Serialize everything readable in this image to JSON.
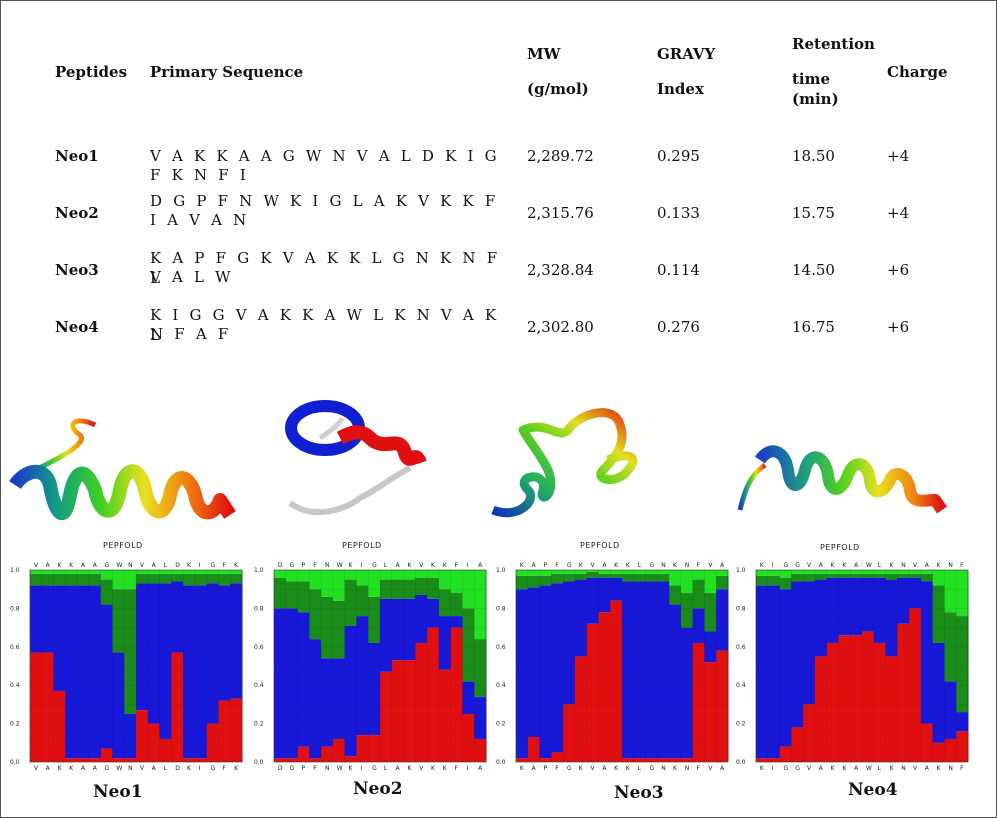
{
  "table": {
    "headers": {
      "peptides": "Peptides",
      "primary_sequence": "Primary Sequence",
      "mw_line1": "MW",
      "mw_line2": "(g/mol)",
      "gravy_line1": "GRAVY",
      "gravy_line2": "Index",
      "retention_line1": "Retention",
      "retention_line2": "time",
      "retention_line3": "(min)",
      "charge": "Charge"
    },
    "rows": [
      {
        "name": "Neo1",
        "seq_line1": "V A K K A A G W N V A L D K I G F K N F I",
        "seq_line2": "",
        "mw": "2,289.72",
        "gravy": "0.295",
        "retention": "18.50",
        "charge": "+4"
      },
      {
        "name": "Neo2",
        "seq_line1": "D G P F N W K I G L A K V K K F I A V A N",
        "seq_line2": "",
        "mw": "2,315.76",
        "gravy": "0.133",
        "retention": "15.75",
        "charge": "+4"
      },
      {
        "name": "Neo3",
        "seq_line1": "K A P F G K V A K K L G N K N F V A L W",
        "seq_line2": "L",
        "mw": "2,328.84",
        "gravy": "0.114",
        "retention": "14.50",
        "charge": "+6"
      },
      {
        "name": "Neo4",
        "seq_line1": "K I G G V A K K A W L K N V A K N F A F",
        "seq_line2": "L",
        "mw": "2,302.80",
        "gravy": "0.276",
        "retention": "16.75",
        "charge": "+6"
      }
    ]
  },
  "structures": {
    "pepfold_label": "PEPFOLD"
  },
  "chart_data": [
    {
      "type": "area",
      "title": "Neo1",
      "ylim": [
        0,
        1.0
      ],
      "yticks": [
        "1.0",
        "0.8",
        "0.6",
        "0.4",
        "0.2",
        "0.0"
      ],
      "residues": [
        "V",
        "A",
        "K",
        "K",
        "A",
        "A",
        "G",
        "W",
        "N",
        "V",
        "A",
        "L",
        "D",
        "K",
        "I",
        "G",
        "F",
        "K"
      ],
      "series": [
        {
          "color": "#e01010",
          "values": [
            0.57,
            0.57,
            0.37,
            0.02,
            0.02,
            0.02,
            0.07,
            0.02,
            0.02,
            0.27,
            0.2,
            0.12,
            0.57,
            0.02,
            0.02,
            0.2,
            0.32,
            0.33
          ]
        },
        {
          "color": "#1818d8",
          "values": [
            0.35,
            0.35,
            0.55,
            0.9,
            0.9,
            0.9,
            0.75,
            0.55,
            0.23,
            0.66,
            0.73,
            0.81,
            0.37,
            0.9,
            0.9,
            0.73,
            0.6,
            0.6
          ]
        },
        {
          "color": "#1a8c1a",
          "values": [
            0.06,
            0.06,
            0.06,
            0.06,
            0.06,
            0.06,
            0.13,
            0.33,
            0.65,
            0.05,
            0.05,
            0.05,
            0.04,
            0.06,
            0.06,
            0.05,
            0.06,
            0.05
          ]
        },
        {
          "color": "#22e022",
          "values": [
            0.02,
            0.02,
            0.02,
            0.02,
            0.02,
            0.02,
            0.05,
            0.1,
            0.1,
            0.02,
            0.02,
            0.02,
            0.02,
            0.02,
            0.02,
            0.02,
            0.02,
            0.02
          ]
        }
      ]
    },
    {
      "type": "area",
      "title": "Neo2",
      "ylim": [
        0,
        1.0
      ],
      "yticks": [
        "1.0",
        "0.8",
        "0.6",
        "0.4",
        "0.2",
        "0.0"
      ],
      "residues": [
        "D",
        "G",
        "P",
        "F",
        "N",
        "W",
        "K",
        "I",
        "G",
        "L",
        "A",
        "K",
        "V",
        "K",
        "K",
        "F",
        "I",
        "A"
      ],
      "series": [
        {
          "color": "#e01010",
          "values": [
            0.02,
            0.02,
            0.08,
            0.02,
            0.08,
            0.12,
            0.03,
            0.14,
            0.14,
            0.47,
            0.53,
            0.53,
            0.62,
            0.7,
            0.48,
            0.7,
            0.25,
            0.12
          ]
        },
        {
          "color": "#1818d8",
          "values": [
            0.78,
            0.78,
            0.7,
            0.62,
            0.46,
            0.42,
            0.68,
            0.62,
            0.48,
            0.38,
            0.32,
            0.32,
            0.25,
            0.15,
            0.28,
            0.06,
            0.17,
            0.22
          ]
        },
        {
          "color": "#1a8c1a",
          "values": [
            0.16,
            0.14,
            0.16,
            0.26,
            0.32,
            0.3,
            0.24,
            0.16,
            0.24,
            0.1,
            0.1,
            0.1,
            0.09,
            0.11,
            0.14,
            0.12,
            0.38,
            0.3
          ]
        },
        {
          "color": "#22e022",
          "values": [
            0.04,
            0.06,
            0.06,
            0.1,
            0.14,
            0.16,
            0.05,
            0.08,
            0.14,
            0.05,
            0.05,
            0.05,
            0.04,
            0.04,
            0.1,
            0.12,
            0.2,
            0.36
          ]
        }
      ]
    },
    {
      "type": "area",
      "title": "Neo3",
      "ylim": [
        0,
        1.0
      ],
      "yticks": [
        "1.0",
        "0.8",
        "0.6",
        "0.4",
        "0.2",
        "0.0"
      ],
      "residues": [
        "K",
        "A",
        "P",
        "F",
        "G",
        "K",
        "V",
        "A",
        "K",
        "K",
        "L",
        "G",
        "N",
        "K",
        "N",
        "F",
        "V",
        "A"
      ],
      "series": [
        {
          "color": "#e01010",
          "values": [
            0.02,
            0.13,
            0.02,
            0.05,
            0.3,
            0.55,
            0.72,
            0.78,
            0.84,
            0.02,
            0.02,
            0.02,
            0.02,
            0.02,
            0.02,
            0.62,
            0.52,
            0.58
          ]
        },
        {
          "color": "#1818d8",
          "values": [
            0.88,
            0.78,
            0.9,
            0.88,
            0.64,
            0.4,
            0.24,
            0.18,
            0.12,
            0.92,
            0.92,
            0.92,
            0.92,
            0.8,
            0.68,
            0.18,
            0.16,
            0.32
          ]
        },
        {
          "color": "#1a8c1a",
          "values": [
            0.07,
            0.06,
            0.05,
            0.05,
            0.04,
            0.03,
            0.03,
            0.02,
            0.02,
            0.04,
            0.04,
            0.04,
            0.04,
            0.1,
            0.18,
            0.15,
            0.2,
            0.07
          ]
        },
        {
          "color": "#22e022",
          "values": [
            0.03,
            0.03,
            0.03,
            0.02,
            0.02,
            0.02,
            0.01,
            0.02,
            0.02,
            0.02,
            0.02,
            0.02,
            0.02,
            0.08,
            0.12,
            0.05,
            0.12,
            0.03
          ]
        }
      ]
    },
    {
      "type": "area",
      "title": "Neo4",
      "ylim": [
        0,
        1.0
      ],
      "yticks": [
        "1.0",
        "0.8",
        "0.6",
        "0.4",
        "0.2",
        "0.0"
      ],
      "residues": [
        "K",
        "I",
        "G",
        "G",
        "V",
        "A",
        "K",
        "K",
        "A",
        "W",
        "L",
        "K",
        "N",
        "V",
        "A",
        "K",
        "N",
        "F"
      ],
      "series": [
        {
          "color": "#e01010",
          "values": [
            0.02,
            0.02,
            0.08,
            0.18,
            0.3,
            0.55,
            0.62,
            0.66,
            0.66,
            0.68,
            0.62,
            0.55,
            0.72,
            0.8,
            0.2,
            0.1,
            0.12,
            0.16
          ]
        },
        {
          "color": "#1818d8",
          "values": [
            0.9,
            0.9,
            0.82,
            0.76,
            0.64,
            0.4,
            0.34,
            0.3,
            0.3,
            0.28,
            0.34,
            0.4,
            0.24,
            0.16,
            0.74,
            0.52,
            0.3,
            0.1
          ]
        },
        {
          "color": "#1a8c1a",
          "values": [
            0.05,
            0.05,
            0.06,
            0.04,
            0.04,
            0.03,
            0.02,
            0.02,
            0.02,
            0.02,
            0.02,
            0.03,
            0.02,
            0.02,
            0.04,
            0.3,
            0.36,
            0.5
          ]
        },
        {
          "color": "#22e022",
          "values": [
            0.03,
            0.03,
            0.04,
            0.02,
            0.02,
            0.02,
            0.02,
            0.02,
            0.02,
            0.02,
            0.02,
            0.02,
            0.02,
            0.02,
            0.02,
            0.08,
            0.22,
            0.24
          ]
        }
      ]
    }
  ]
}
